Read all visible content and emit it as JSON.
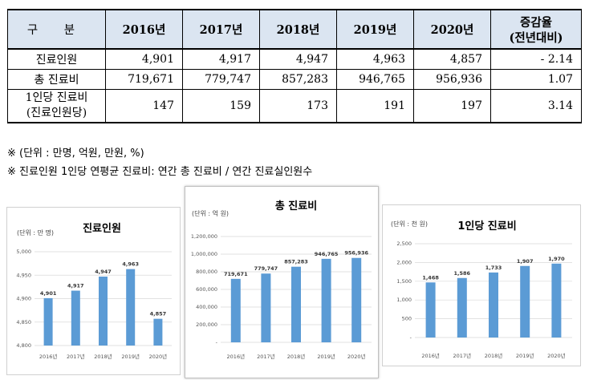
{
  "table": {
    "headers": [
      "구 분",
      "2016년",
      "2017년",
      "2018년",
      "2019년",
      "2020년"
    ],
    "rate_header": [
      "증감율",
      "(전년대비)"
    ],
    "rows": [
      {
        "label": "진료인원",
        "values": [
          "4,901",
          "4,917",
          "4,947",
          "4,963",
          "4,857"
        ],
        "rate": "- 2.14"
      },
      {
        "label": "총 진료비",
        "values": [
          "719,671",
          "779,747",
          "857,283",
          "946,765",
          "956,936"
        ],
        "rate": "1.07"
      },
      {
        "label_lines": [
          "1인당 진료비",
          "(진료인원당)"
        ],
        "values": [
          "147",
          "159",
          "173",
          "191",
          "197"
        ],
        "rate": "3.14"
      }
    ]
  },
  "notes": [
    "※ (단위 : 만명, 억원, 만원, %)",
    "※ 진료인원 1인당 연평균 진료비: 연간 총 진료비 / 연간 진료실인원수"
  ],
  "chart_data": [
    {
      "type": "bar",
      "title": "진료인원",
      "unit_label": "(단위 : 만 명)",
      "categories": [
        "2016년",
        "2017년",
        "2018년",
        "2019년",
        "2020년"
      ],
      "values": [
        4901,
        4917,
        4947,
        4963,
        4857
      ],
      "value_labels": [
        "4,901",
        "4,917",
        "4,947",
        "4,963",
        "4,857"
      ],
      "ylim": [
        4800,
        5000
      ],
      "yticks": [
        "4,800",
        "4,850",
        "4,900",
        "4,950",
        "5,000"
      ],
      "ytick_values": [
        4800,
        4850,
        4900,
        4950,
        5000
      ],
      "color": "#5b9bd5"
    },
    {
      "type": "bar",
      "title": "총 진료비",
      "unit_label": "(단위 : 억 원)",
      "categories": [
        "2016년",
        "2017년",
        "2018년",
        "2019년",
        "2020년"
      ],
      "values": [
        719671,
        779747,
        857283,
        946765,
        956936
      ],
      "value_labels": [
        "719,671",
        "779,747",
        "857,283",
        "946,765",
        "956,936"
      ],
      "ylim": [
        0,
        1200000
      ],
      "yticks": [
        "-",
        "200,000",
        "400,000",
        "600,000",
        "800,000",
        "1,000,000",
        "1,200,000"
      ],
      "ytick_values": [
        0,
        200000,
        400000,
        600000,
        800000,
        1000000,
        1200000
      ],
      "color": "#5b9bd5"
    },
    {
      "type": "bar",
      "title": "1인당 진료비",
      "unit_label": "(단위 : 천 원)",
      "categories": [
        "2016년",
        "2017년",
        "2018년",
        "2019년",
        "2020년"
      ],
      "values": [
        1468,
        1586,
        1733,
        1907,
        1970
      ],
      "value_labels": [
        "1,468",
        "1,586",
        "1,733",
        "1,907",
        "1,970"
      ],
      "ylim": [
        0,
        2500
      ],
      "yticks": [
        "-",
        "500",
        "1,000",
        "1,500",
        "2,000",
        "2,500"
      ],
      "ytick_values": [
        0,
        500,
        1000,
        1500,
        2000,
        2500
      ],
      "color": "#5b9bd5"
    }
  ]
}
